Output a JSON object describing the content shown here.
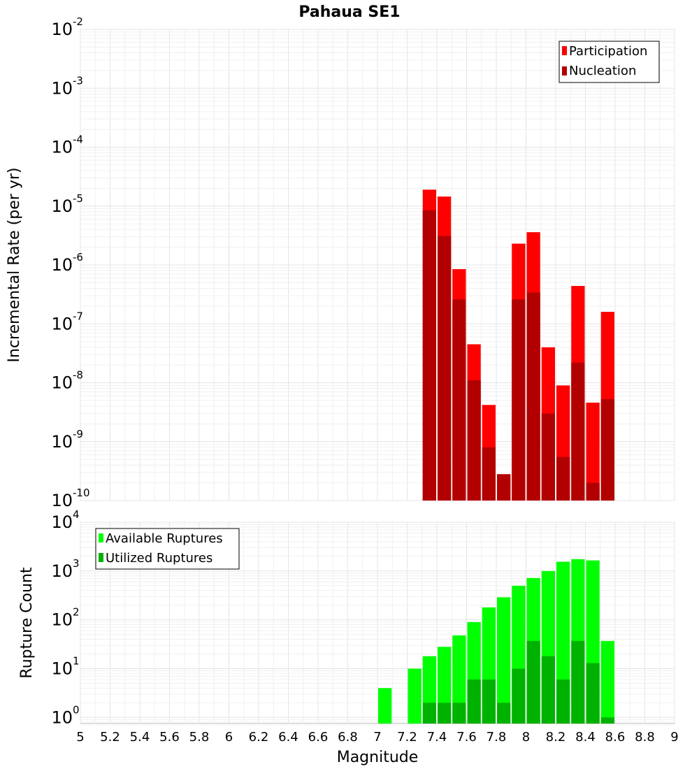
{
  "chart_data": [
    {
      "type": "bar",
      "title": "Pahaua SE1",
      "ylabel": "Incremental Rate (per yr)",
      "xlabel": "",
      "yscale": "log",
      "ylim": [
        1e-10,
        0.01
      ],
      "xlim": [
        5,
        9
      ],
      "grid": true,
      "legend_position": "top-right",
      "y_ticks": [
        {
          "base": "10",
          "exp": "-2"
        },
        {
          "base": "10",
          "exp": "-3"
        },
        {
          "base": "10",
          "exp": "-4"
        },
        {
          "base": "10",
          "exp": "-5"
        },
        {
          "base": "10",
          "exp": "-6"
        },
        {
          "base": "10",
          "exp": "-7"
        },
        {
          "base": "10",
          "exp": "-8"
        },
        {
          "base": "10",
          "exp": "-9"
        },
        {
          "base": "10",
          "exp": "-10"
        }
      ],
      "x": [
        7.35,
        7.45,
        7.55,
        7.65,
        7.75,
        7.85,
        7.95,
        8.05,
        8.15,
        8.25,
        8.35,
        8.45,
        8.55
      ],
      "series": [
        {
          "name": "Participation",
          "color": "#ff0000",
          "values": [
            1.9e-05,
            1.45e-05,
            8.5e-07,
            4.5e-08,
            4.2e-09,
            2.8e-10,
            2.3e-06,
            3.6e-06,
            4e-08,
            9e-09,
            4.4e-07,
            4.6e-09,
            1.6e-07
          ]
        },
        {
          "name": "Nucleation",
          "color": "#b20000",
          "values": [
            8.5e-06,
            3.1e-06,
            2.6e-07,
            1.1e-08,
            8e-10,
            2.8e-10,
            2.6e-07,
            3.4e-07,
            3e-09,
            5.5e-10,
            2.2e-08,
            2e-10,
            5.3e-09
          ]
        }
      ]
    },
    {
      "type": "bar",
      "title": "",
      "ylabel": "Rupture Count",
      "xlabel": "Magnitude",
      "yscale": "log",
      "ylim": [
        0.75,
        10000
      ],
      "xlim": [
        5,
        9
      ],
      "grid": true,
      "legend_position": "top-left",
      "x_ticks": [
        "5",
        "5.2",
        "5.4",
        "5.6",
        "5.8",
        "6",
        "6.2",
        "6.4",
        "6.6",
        "6.8",
        "7",
        "7.2",
        "7.4",
        "7.6",
        "7.8",
        "8",
        "8.2",
        "8.4",
        "8.6",
        "8.8",
        "9"
      ],
      "y_ticks": [
        {
          "base": "10",
          "exp": "4"
        },
        {
          "base": "10",
          "exp": "3"
        },
        {
          "base": "10",
          "exp": "2"
        },
        {
          "base": "10",
          "exp": "1"
        },
        {
          "base": "10",
          "exp": "0"
        }
      ],
      "x": [
        7.05,
        7.25,
        7.35,
        7.45,
        7.55,
        7.65,
        7.75,
        7.85,
        7.95,
        8.05,
        8.15,
        8.25,
        8.35,
        8.45,
        8.55
      ],
      "series": [
        {
          "name": "Available Ruptures",
          "color": "#00ff00",
          "values": [
            4,
            10,
            18,
            28,
            48,
            90,
            180,
            290,
            500,
            720,
            1000,
            1550,
            1750,
            1650,
            37
          ]
        },
        {
          "name": "Utilized Ruptures",
          "color": "#00b200",
          "values": [
            0,
            0,
            2,
            2,
            2,
            6,
            6,
            2,
            10,
            37,
            18,
            6,
            37,
            13,
            1
          ]
        }
      ]
    }
  ]
}
